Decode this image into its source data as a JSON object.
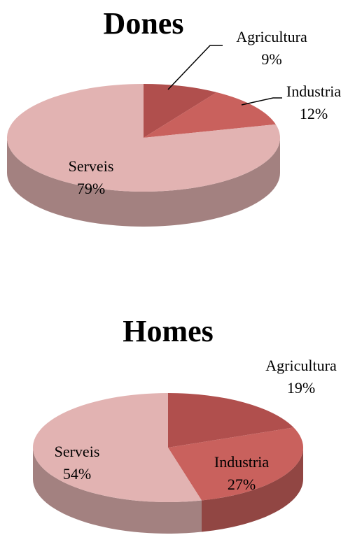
{
  "chart_data": [
    {
      "type": "pie",
      "title": "Dones",
      "categories": [
        "Agricultura",
        "Industria",
        "Serveis"
      ],
      "values": [
        9,
        12,
        79
      ],
      "value_labels": [
        "9%",
        "12%",
        "79%"
      ],
      "colors": [
        "#b04f4d",
        "#c9615d",
        "#e2b3b2"
      ]
    },
    {
      "type": "pie",
      "title": "Homes",
      "categories": [
        "Agricultura",
        "Industria",
        "Serveis"
      ],
      "values": [
        19,
        27,
        54
      ],
      "value_labels": [
        "19%",
        "27%",
        "54%"
      ],
      "colors": [
        "#b04f4d",
        "#c9615d",
        "#e2b3b2"
      ]
    }
  ]
}
